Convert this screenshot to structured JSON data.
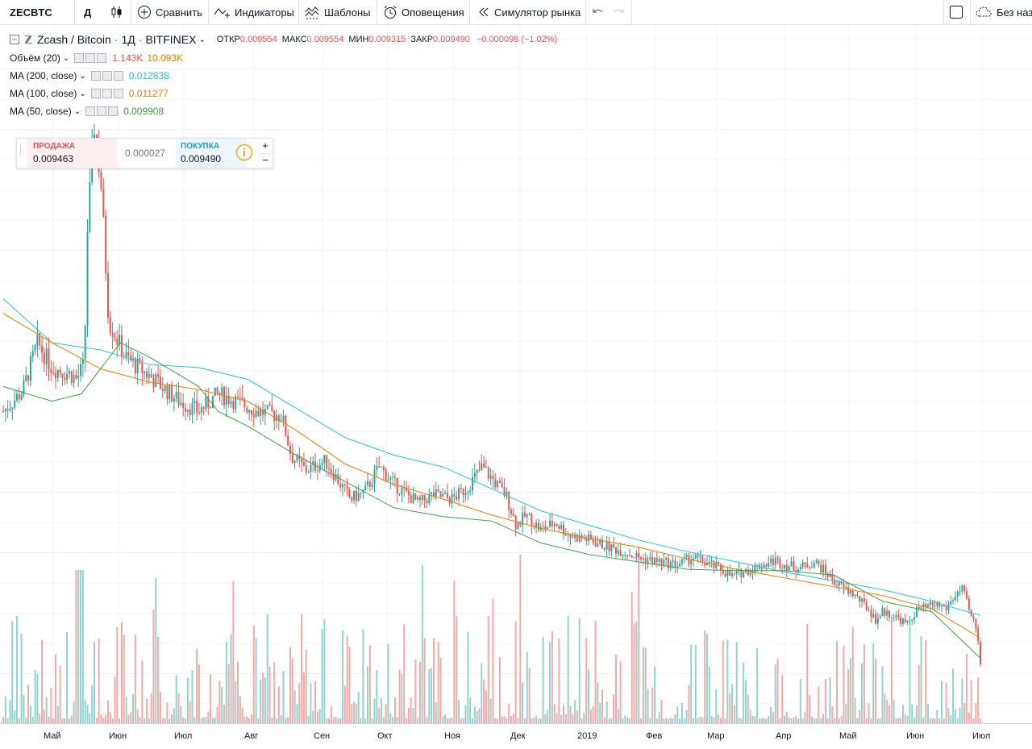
{
  "toolbar": {
    "symbol": "ZECBTC",
    "interval": "Д",
    "compare_label": "Сравнить",
    "indicators_label": "Индикаторы",
    "templates_label": "Шаблоны",
    "alerts_label": "Оповещения",
    "replay_label": "Симулятор рынка",
    "layout_label": "Без назв"
  },
  "legend": {
    "title": "Zcash / Bitcoin",
    "interval": "1Д",
    "exchange": "BITFINEX",
    "open_label": "ОТКР",
    "open": "0.009554",
    "high_label": "МАКС",
    "high": "0.009554",
    "low_label": "МИН",
    "low": "0.009315",
    "close_label": "ЗАКР",
    "close": "0.009490",
    "change": "−0.000098 (−1.02%)"
  },
  "indicators": [
    {
      "label": "Объём (20)",
      "values": [
        "1.143K",
        "10.093K"
      ],
      "colors": [
        "#ef5350",
        "#f57c00"
      ]
    },
    {
      "label": "MA (200, close)",
      "values": [
        "0.012838"
      ],
      "colors": [
        "#26c6da"
      ]
    },
    {
      "label": "MA (100, close)",
      "values": [
        "0.011277"
      ],
      "colors": [
        "#f57c00"
      ]
    },
    {
      "label": "MA (50, close)",
      "values": [
        "0.009908"
      ],
      "colors": [
        "#43a047"
      ]
    }
  ],
  "trade": {
    "sell_label": "ПРОДАЖА",
    "sell_price": "0.009463",
    "spread": "0.000027",
    "buy_label": "ПОКУПКА",
    "buy_price": "0.009490"
  },
  "x_axis_labels": [
    "Май",
    "Июн",
    "Июл",
    "Авг",
    "Сен",
    "Окт",
    "Ноя",
    "Дек",
    "2019",
    "Фев",
    "Мар",
    "Апр",
    "Май",
    "Июн",
    "Июл"
  ],
  "colors": {
    "up": "#26a69a",
    "down": "#ef5350",
    "ma200": "#26c6da",
    "ma100": "#f57c00",
    "ma50": "#43a047"
  },
  "chart_data": {
    "type": "candlestick",
    "title": "Zcash / Bitcoin · 1Д · BITFINEX",
    "xlabel": "",
    "ylabel": "",
    "price_anchors": [
      {
        "t": 0,
        "p": 0.0268
      },
      {
        "t": 0.02,
        "p": 0.0282
      },
      {
        "t": 0.035,
        "p": 0.0315
      },
      {
        "t": 0.05,
        "p": 0.0298
      },
      {
        "t": 0.07,
        "p": 0.0293
      },
      {
        "t": 0.075,
        "p": 0.029
      },
      {
        "t": 0.083,
        "p": 0.03
      },
      {
        "t": 0.086,
        "p": 0.039
      },
      {
        "t": 0.093,
        "p": 0.0465
      },
      {
        "t": 0.1,
        "p": 0.0425
      },
      {
        "t": 0.108,
        "p": 0.033
      },
      {
        "t": 0.125,
        "p": 0.0305
      },
      {
        "t": 0.15,
        "p": 0.0292
      },
      {
        "t": 0.18,
        "p": 0.0275
      },
      {
        "t": 0.2,
        "p": 0.0268
      },
      {
        "t": 0.22,
        "p": 0.028
      },
      {
        "t": 0.238,
        "p": 0.0275
      },
      {
        "t": 0.26,
        "p": 0.0268
      },
      {
        "t": 0.285,
        "p": 0.0265
      },
      {
        "t": 0.295,
        "p": 0.0237
      },
      {
        "t": 0.31,
        "p": 0.0228
      },
      {
        "t": 0.33,
        "p": 0.0234
      },
      {
        "t": 0.355,
        "p": 0.0208
      },
      {
        "t": 0.37,
        "p": 0.0213
      },
      {
        "t": 0.385,
        "p": 0.023
      },
      {
        "t": 0.4,
        "p": 0.0218
      },
      {
        "t": 0.425,
        "p": 0.0205
      },
      {
        "t": 0.44,
        "p": 0.0211
      },
      {
        "t": 0.46,
        "p": 0.0208
      },
      {
        "t": 0.475,
        "p": 0.0216
      },
      {
        "t": 0.49,
        "p": 0.023
      },
      {
        "t": 0.515,
        "p": 0.021
      },
      {
        "t": 0.525,
        "p": 0.019
      },
      {
        "t": 0.535,
        "p": 0.0197
      },
      {
        "t": 0.55,
        "p": 0.0187
      },
      {
        "t": 0.565,
        "p": 0.0192
      },
      {
        "t": 0.58,
        "p": 0.0183
      },
      {
        "t": 0.6,
        "p": 0.018
      },
      {
        "t": 0.62,
        "p": 0.0175
      },
      {
        "t": 0.635,
        "p": 0.0172
      },
      {
        "t": 0.655,
        "p": 0.0167
      },
      {
        "t": 0.69,
        "p": 0.0163
      },
      {
        "t": 0.705,
        "p": 0.0168
      },
      {
        "t": 0.735,
        "p": 0.016
      },
      {
        "t": 0.745,
        "p": 0.0155
      },
      {
        "t": 0.765,
        "p": 0.016
      },
      {
        "t": 0.79,
        "p": 0.0166
      },
      {
        "t": 0.8,
        "p": 0.0163
      },
      {
        "t": 0.815,
        "p": 0.0161
      },
      {
        "t": 0.83,
        "p": 0.0165
      },
      {
        "t": 0.84,
        "p": 0.0159
      },
      {
        "t": 0.855,
        "p": 0.0149
      },
      {
        "t": 0.87,
        "p": 0.0143
      },
      {
        "t": 0.885,
        "p": 0.0133
      },
      {
        "t": 0.893,
        "p": 0.0125
      },
      {
        "t": 0.9,
        "p": 0.0131
      },
      {
        "t": 0.915,
        "p": 0.0127
      },
      {
        "t": 0.925,
        "p": 0.0122
      },
      {
        "t": 0.935,
        "p": 0.0132
      },
      {
        "t": 0.955,
        "p": 0.0136
      },
      {
        "t": 0.965,
        "p": 0.0133
      },
      {
        "t": 0.975,
        "p": 0.0143
      },
      {
        "t": 0.982,
        "p": 0.0146
      },
      {
        "t": 0.99,
        "p": 0.0128
      },
      {
        "t": 0.996,
        "p": 0.012
      },
      {
        "t": 1.0,
        "p": 0.00949
      }
    ],
    "ma_lines": [
      {
        "name": "MA (200, close)",
        "color": "#26c6da",
        "points": [
          {
            "t": 0,
            "p": 0.0345
          },
          {
            "t": 0.05,
            "p": 0.0315
          },
          {
            "t": 0.1,
            "p": 0.031
          },
          {
            "t": 0.15,
            "p": 0.03
          },
          {
            "t": 0.2,
            "p": 0.0298
          },
          {
            "t": 0.25,
            "p": 0.029
          },
          {
            "t": 0.3,
            "p": 0.027
          },
          {
            "t": 0.35,
            "p": 0.025
          },
          {
            "t": 0.4,
            "p": 0.0238
          },
          {
            "t": 0.45,
            "p": 0.023
          },
          {
            "t": 0.5,
            "p": 0.0215
          },
          {
            "t": 0.55,
            "p": 0.02
          },
          {
            "t": 0.6,
            "p": 0.019
          },
          {
            "t": 0.65,
            "p": 0.018
          },
          {
            "t": 0.7,
            "p": 0.0172
          },
          {
            "t": 0.75,
            "p": 0.0165
          },
          {
            "t": 0.8,
            "p": 0.0158
          },
          {
            "t": 0.85,
            "p": 0.0152
          },
          {
            "t": 0.9,
            "p": 0.0146
          },
          {
            "t": 0.95,
            "p": 0.0138
          },
          {
            "t": 1.0,
            "p": 0.012838
          }
        ]
      },
      {
        "name": "MA (100, close)",
        "color": "#f57c00",
        "points": [
          {
            "t": 0,
            "p": 0.0335
          },
          {
            "t": 0.05,
            "p": 0.0315
          },
          {
            "t": 0.1,
            "p": 0.0297
          },
          {
            "t": 0.15,
            "p": 0.0288
          },
          {
            "t": 0.2,
            "p": 0.0283
          },
          {
            "t": 0.25,
            "p": 0.0275
          },
          {
            "t": 0.3,
            "p": 0.0255
          },
          {
            "t": 0.35,
            "p": 0.0232
          },
          {
            "t": 0.4,
            "p": 0.0218
          },
          {
            "t": 0.45,
            "p": 0.0208
          },
          {
            "t": 0.5,
            "p": 0.0197
          },
          {
            "t": 0.55,
            "p": 0.0188
          },
          {
            "t": 0.6,
            "p": 0.0181
          },
          {
            "t": 0.65,
            "p": 0.0175
          },
          {
            "t": 0.7,
            "p": 0.0167
          },
          {
            "t": 0.75,
            "p": 0.016
          },
          {
            "t": 0.8,
            "p": 0.0154
          },
          {
            "t": 0.85,
            "p": 0.0148
          },
          {
            "t": 0.9,
            "p": 0.0142
          },
          {
            "t": 0.95,
            "p": 0.0133
          },
          {
            "t": 1.0,
            "p": 0.011277
          }
        ]
      },
      {
        "name": "MA (50, close)",
        "color": "#43a047",
        "points": [
          {
            "t": 0,
            "p": 0.0285
          },
          {
            "t": 0.05,
            "p": 0.0275
          },
          {
            "t": 0.08,
            "p": 0.028
          },
          {
            "t": 0.12,
            "p": 0.0315
          },
          {
            "t": 0.15,
            "p": 0.0305
          },
          {
            "t": 0.2,
            "p": 0.0285
          },
          {
            "t": 0.22,
            "p": 0.0268
          },
          {
            "t": 0.25,
            "p": 0.0258
          },
          {
            "t": 0.3,
            "p": 0.0238
          },
          {
            "t": 0.35,
            "p": 0.022
          },
          {
            "t": 0.4,
            "p": 0.0202
          },
          {
            "t": 0.45,
            "p": 0.0196
          },
          {
            "t": 0.5,
            "p": 0.0193
          },
          {
            "t": 0.55,
            "p": 0.0178
          },
          {
            "t": 0.6,
            "p": 0.017
          },
          {
            "t": 0.65,
            "p": 0.0165
          },
          {
            "t": 0.7,
            "p": 0.016
          },
          {
            "t": 0.75,
            "p": 0.0159
          },
          {
            "t": 0.8,
            "p": 0.0159
          },
          {
            "t": 0.85,
            "p": 0.0156
          },
          {
            "t": 0.9,
            "p": 0.0138
          },
          {
            "t": 0.95,
            "p": 0.0131
          },
          {
            "t": 1.0,
            "p": 0.009908
          }
        ]
      }
    ],
    "price_range": [
      0.008,
      0.048
    ],
    "volume_max": 30
  }
}
